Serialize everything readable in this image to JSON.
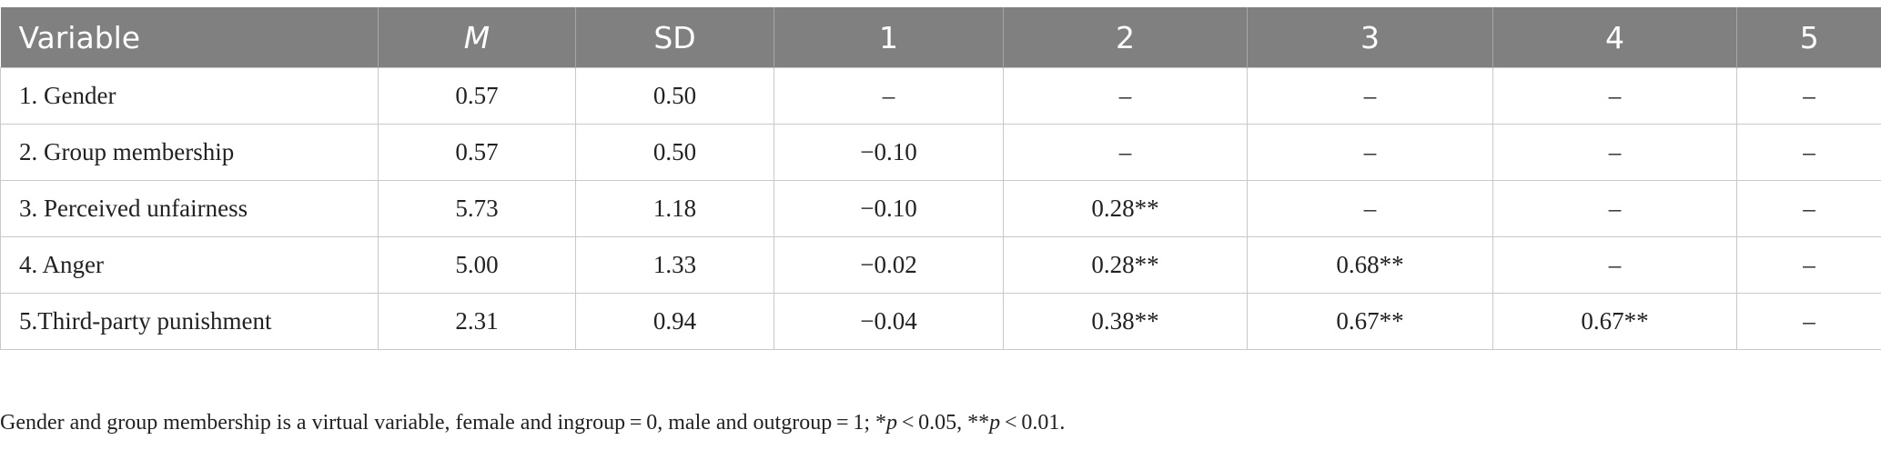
{
  "table": {
    "headers": [
      "Variable",
      "M",
      "SD",
      "1",
      "2",
      "3",
      "4",
      "5"
    ],
    "rows": [
      [
        "1. Gender",
        "0.57",
        "0.50",
        "–",
        "–",
        "–",
        "–",
        "–"
      ],
      [
        "2. Group membership",
        "0.57",
        "0.50",
        "−0.10",
        "–",
        "–",
        "–",
        "–"
      ],
      [
        "3. Perceived unfairness",
        "5.73",
        "1.18",
        "−0.10",
        "0.28**",
        "–",
        "–",
        "–"
      ],
      [
        "4. Anger",
        "5.00",
        "1.33",
        "−0.02",
        "0.28**",
        "0.68**",
        "–",
        "–"
      ],
      [
        "5.Third-party punishment",
        "2.31",
        "0.94",
        "−0.04",
        "0.38**",
        "0.67**",
        "0.67**",
        "–"
      ]
    ]
  },
  "note": {
    "text": "Gender and group membership is a virtual variable, female and ingroup = 0, male and outgroup = 1; *",
    "p1": "p",
    "t1": " < 0.05, **",
    "p2": "p",
    "t2": " < 0.01."
  }
}
